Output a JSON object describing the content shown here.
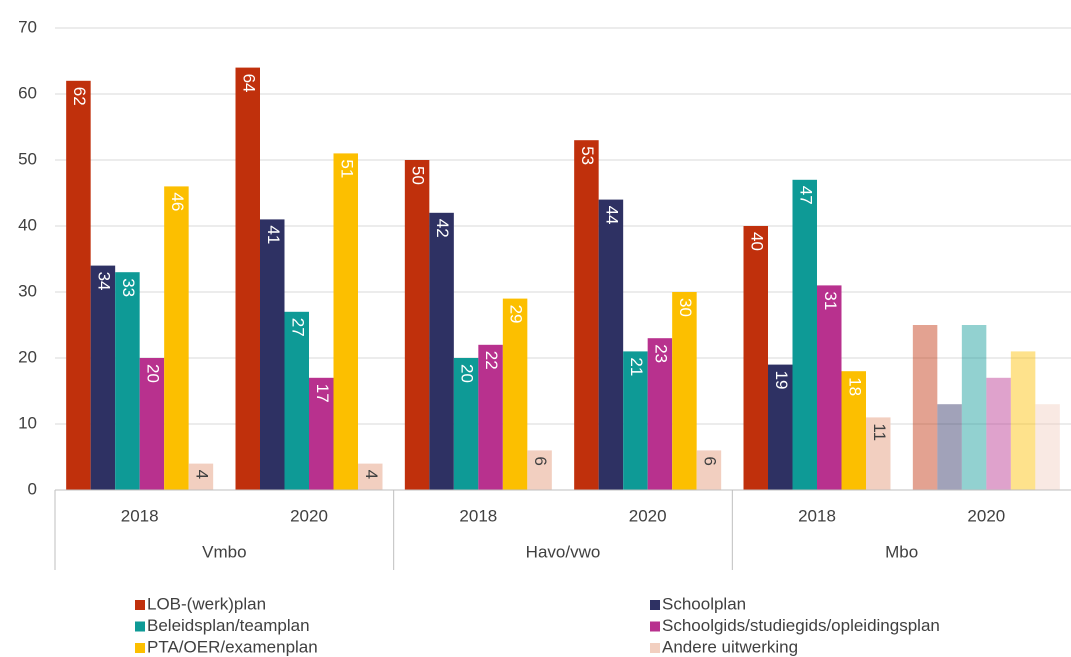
{
  "chart_data": {
    "type": "bar",
    "categories": [
      "2018",
      "2020",
      "2018",
      "2020",
      "2018",
      "2020"
    ],
    "groups": [
      "Vmbo",
      "Havo/vwo",
      "Mbo"
    ],
    "series": [
      {
        "name": "LOB-(werk)plan",
        "color": "#c0300c",
        "values": [
          62,
          64,
          50,
          53,
          40,
          25
        ]
      },
      {
        "name": "Schoolplan",
        "color": "#2e3163",
        "values": [
          34,
          41,
          42,
          44,
          19,
          13
        ]
      },
      {
        "name": "Beleidsplan/teamplan",
        "color": "#0e9a96",
        "values": [
          33,
          27,
          20,
          21,
          47,
          25
        ]
      },
      {
        "name": "Schoolgids/studiegids/opleidingsplan",
        "color": "#b8318e",
        "values": [
          20,
          17,
          22,
          23,
          31,
          17
        ]
      },
      {
        "name": "PTA/OER/examenplan",
        "color": "#fcbf00",
        "values": [
          46,
          51,
          29,
          30,
          18,
          21
        ]
      },
      {
        "name": "Andere uitwerking",
        "color": "#f2cfc0",
        "values": [
          4,
          4,
          6,
          6,
          11,
          13
        ]
      }
    ],
    "faded_category": 5,
    "ylim": [
      0,
      70
    ],
    "yticks": [
      0,
      10,
      20,
      30,
      40,
      50,
      60,
      70
    ],
    "grid": true
  }
}
